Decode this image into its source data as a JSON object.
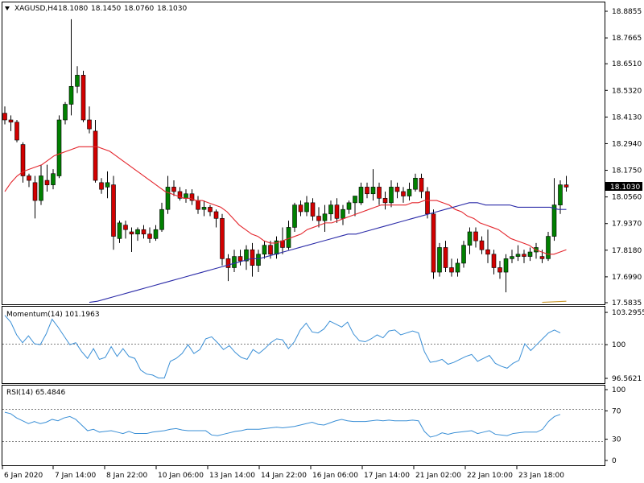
{
  "main_header": {
    "symbol": "XAGUSD,H4",
    "open": "18.1080",
    "high": "18.1450",
    "low": "18.0760",
    "close": "18.1030",
    "triangle_icon": "triangle-down-icon"
  },
  "current_price_label": "18.1030",
  "colors": {
    "bull": "#008000",
    "bear": "#d20000",
    "ma_fast": "#e4262d",
    "ma_slow": "#2b2ba8",
    "ma_long": "#c8962a",
    "indicator": "#3a8fd6",
    "grid": "#7f7f7f",
    "frame": "#000000"
  },
  "momentum": {
    "label": "Momentum(14) 101.1963",
    "ticks": [
      "103.2955",
      "100",
      "96.5621"
    ],
    "values": [
      103.0,
      102.3,
      101.0,
      100.2,
      100.9,
      100.1,
      100.0,
      101.1,
      102.6,
      101.8,
      100.9,
      100.0,
      100.2,
      99.3,
      98.6,
      99.6,
      98.5,
      98.7,
      99.8,
      98.8,
      99.6,
      98.8,
      98.6,
      97.4,
      97.0,
      96.9,
      96.6,
      96.6,
      98.3,
      98.6,
      99.1,
      100.0,
      99.1,
      99.5,
      100.6,
      100.8,
      100.2,
      99.5,
      99.9,
      99.2,
      98.7,
      98.5,
      99.5,
      99.1,
      99.6,
      100.2,
      100.6,
      100.5,
      99.6,
      100.3,
      101.5,
      102.2,
      101.3,
      101.2,
      101.6,
      102.4,
      102.1,
      101.8,
      102.3,
      101.1,
      100.4,
      100.3,
      100.6,
      101.0,
      100.7,
      101.4,
      101.5,
      101.0,
      101.2,
      101.4,
      101.2,
      99.3,
      98.2,
      98.3,
      98.5,
      98.0,
      98.2,
      98.5,
      98.8,
      99.0,
      98.3,
      98.6,
      98.9,
      98.1,
      97.8,
      97.6,
      98.1,
      98.4,
      100.1,
      99.4,
      100.0,
      100.6,
      101.2,
      101.5,
      101.2
    ]
  },
  "rsi": {
    "label": "RSI(14) 65.4846",
    "ticks": [
      "100",
      "70",
      "30",
      "0"
    ],
    "values": [
      68,
      66,
      60,
      56,
      52,
      55,
      52,
      54,
      58,
      56,
      60,
      62,
      58,
      50,
      42,
      44,
      40,
      41,
      42,
      40,
      38,
      41,
      38,
      38,
      38,
      40,
      41,
      42,
      44,
      45,
      43,
      42,
      42,
      42,
      42,
      36,
      35,
      37,
      39,
      41,
      42,
      44,
      44,
      44,
      45,
      46,
      47,
      46,
      47,
      48,
      50,
      52,
      54,
      51,
      50,
      53,
      56,
      58,
      56,
      55,
      55,
      55,
      56,
      57,
      56,
      57,
      56,
      56,
      56,
      57,
      56,
      41,
      33,
      35,
      39,
      37,
      39,
      40,
      41,
      42,
      38,
      40,
      42,
      37,
      36,
      35,
      38,
      39,
      40,
      40,
      40,
      44,
      55,
      62,
      65
    ]
  },
  "time_labels": [
    "6 Jan 2020",
    "7 Jan 14:00",
    "8 Jan 22:00",
    "10 Jan 06:00",
    "13 Jan 14:00",
    "14 Jan 22:00",
    "16 Jan 06:00",
    "17 Jan 14:00",
    "21 Jan 02:00",
    "22 Jan 10:00",
    "23 Jan 18:00"
  ],
  "chart_data": {
    "type": "candlestick",
    "title": "XAGUSD,H4",
    "y_ticks": [
      "18.8855",
      "18.7665",
      "18.6510",
      "18.5320",
      "18.4130",
      "18.2940",
      "18.1750",
      "18.0560",
      "17.9370",
      "17.8180",
      "17.6990",
      "17.5835"
    ],
    "ylim": [
      17.5835,
      18.8855
    ],
    "x_labels": [
      "6 Jan 2020",
      "7 Jan 14:00",
      "8 Jan 22:00",
      "10 Jan 06:00",
      "13 Jan 14:00",
      "14 Jan 22:00",
      "16 Jan 06:00",
      "17 Jan 14:00",
      "21 Jan 02:00",
      "22 Jan 10:00",
      "23 Jan 18:00"
    ],
    "ohlc": [
      [
        18.43,
        18.46,
        18.38,
        18.4
      ],
      [
        18.4,
        18.42,
        18.35,
        18.39
      ],
      [
        18.39,
        18.4,
        18.3,
        18.31
      ],
      [
        18.29,
        18.3,
        18.12,
        18.15
      ],
      [
        18.15,
        18.16,
        18.1,
        18.13
      ],
      [
        18.12,
        18.15,
        17.96,
        18.04
      ],
      [
        18.04,
        18.2,
        18.02,
        18.15
      ],
      [
        18.13,
        18.2,
        18.08,
        18.11
      ],
      [
        18.11,
        18.18,
        18.09,
        18.16
      ],
      [
        18.15,
        18.42,
        18.14,
        18.4
      ],
      [
        18.4,
        18.48,
        18.38,
        18.47
      ],
      [
        18.47,
        18.85,
        18.42,
        18.55
      ],
      [
        18.55,
        18.64,
        18.52,
        18.6
      ],
      [
        18.6,
        18.62,
        18.39,
        18.4
      ],
      [
        18.4,
        18.46,
        18.34,
        18.36
      ],
      [
        18.35,
        18.4,
        18.12,
        18.13
      ],
      [
        18.12,
        18.14,
        18.07,
        18.09
      ],
      [
        18.1,
        18.17,
        18.05,
        18.12
      ],
      [
        18.11,
        18.15,
        17.82,
        17.88
      ],
      [
        17.87,
        17.95,
        17.85,
        17.94
      ],
      [
        17.93,
        17.95,
        17.87,
        17.91
      ],
      [
        17.9,
        17.92,
        17.81,
        17.89
      ],
      [
        17.89,
        17.92,
        17.86,
        17.91
      ],
      [
        17.91,
        17.93,
        17.87,
        17.89
      ],
      [
        17.89,
        17.92,
        17.85,
        17.87
      ],
      [
        17.87,
        17.93,
        17.86,
        17.91
      ],
      [
        17.91,
        18.03,
        17.9,
        18.0
      ],
      [
        18.0,
        18.15,
        17.98,
        18.1
      ],
      [
        18.1,
        18.13,
        18.06,
        18.08
      ],
      [
        18.08,
        18.1,
        18.04,
        18.05
      ],
      [
        18.05,
        18.09,
        18.03,
        18.07
      ],
      [
        18.07,
        18.09,
        18.02,
        18.04
      ],
      [
        18.04,
        18.06,
        17.98,
        18.0
      ],
      [
        18.0,
        18.04,
        17.97,
        18.01
      ],
      [
        18.01,
        18.02,
        17.97,
        17.99
      ],
      [
        17.99,
        18.0,
        17.92,
        17.96
      ],
      [
        17.96,
        17.98,
        17.75,
        17.78
      ],
      [
        17.78,
        17.8,
        17.68,
        17.74
      ],
      [
        17.74,
        17.82,
        17.72,
        17.79
      ],
      [
        17.79,
        17.82,
        17.75,
        17.77
      ],
      [
        17.77,
        17.84,
        17.73,
        17.82
      ],
      [
        17.82,
        17.85,
        17.7,
        17.75
      ],
      [
        17.75,
        17.82,
        17.72,
        17.8
      ],
      [
        17.8,
        17.86,
        17.78,
        17.84
      ],
      [
        17.84,
        17.86,
        17.78,
        17.8
      ],
      [
        17.8,
        17.88,
        17.78,
        17.86
      ],
      [
        17.86,
        17.92,
        17.8,
        17.83
      ],
      [
        17.83,
        17.95,
        17.82,
        17.92
      ],
      [
        17.92,
        18.03,
        17.9,
        18.02
      ],
      [
        18.02,
        18.04,
        17.97,
        17.99
      ],
      [
        17.99,
        18.06,
        17.97,
        18.03
      ],
      [
        18.03,
        18.05,
        17.95,
        17.97
      ],
      [
        17.97,
        18.01,
        17.92,
        17.95
      ],
      [
        17.95,
        18.02,
        17.9,
        17.98
      ],
      [
        17.98,
        18.04,
        17.95,
        18.02
      ],
      [
        18.02,
        18.05,
        17.94,
        17.96
      ],
      [
        17.96,
        18.02,
        17.93,
        18.0
      ],
      [
        18.0,
        18.04,
        17.98,
        18.03
      ],
      [
        18.03,
        18.05,
        17.97,
        18.06
      ],
      [
        18.03,
        18.12,
        18.02,
        18.1
      ],
      [
        18.1,
        18.12,
        18.05,
        18.07
      ],
      [
        18.07,
        18.18,
        18.04,
        18.1
      ],
      [
        18.1,
        18.12,
        18.02,
        18.05
      ],
      [
        18.05,
        18.08,
        18.0,
        18.03
      ],
      [
        18.03,
        18.13,
        18.01,
        18.1
      ],
      [
        18.1,
        18.12,
        18.05,
        18.08
      ],
      [
        18.08,
        18.1,
        18.03,
        18.06
      ],
      [
        18.06,
        18.12,
        18.04,
        18.09
      ],
      [
        18.09,
        18.16,
        18.08,
        18.14
      ],
      [
        18.14,
        18.16,
        18.05,
        18.08
      ],
      [
        18.08,
        18.1,
        17.96,
        17.98
      ],
      [
        17.98,
        18.0,
        17.69,
        17.72
      ],
      [
        17.72,
        17.85,
        17.7,
        17.83
      ],
      [
        17.83,
        17.86,
        17.72,
        17.74
      ],
      [
        17.74,
        17.78,
        17.7,
        17.72
      ],
      [
        17.72,
        17.78,
        17.7,
        17.76
      ],
      [
        17.76,
        17.86,
        17.74,
        17.84
      ],
      [
        17.84,
        17.92,
        17.8,
        17.9
      ],
      [
        17.9,
        17.92,
        17.83,
        17.86
      ],
      [
        17.86,
        17.88,
        17.8,
        17.82
      ],
      [
        17.82,
        17.91,
        17.76,
        17.8
      ],
      [
        17.8,
        17.82,
        17.71,
        17.74
      ],
      [
        17.74,
        17.77,
        17.69,
        17.72
      ],
      [
        17.72,
        17.8,
        17.63,
        17.78
      ],
      [
        17.78,
        17.82,
        17.76,
        17.79
      ],
      [
        17.79,
        17.84,
        17.77,
        17.8
      ],
      [
        17.8,
        17.82,
        17.76,
        17.79
      ],
      [
        17.79,
        17.83,
        17.77,
        17.81
      ],
      [
        17.81,
        17.85,
        17.78,
        17.83
      ],
      [
        17.79,
        17.82,
        17.76,
        17.78
      ],
      [
        17.78,
        17.9,
        17.77,
        17.88
      ],
      [
        17.88,
        18.14,
        17.86,
        18.02
      ],
      [
        18.02,
        18.13,
        17.98,
        18.11
      ],
      [
        18.11,
        18.15,
        18.08,
        18.1
      ]
    ],
    "ma_fast_values": [
      18.08,
      18.12,
      18.15,
      18.17,
      18.18,
      18.19,
      18.2,
      18.22,
      18.24,
      18.25,
      18.26,
      18.27,
      18.28,
      18.28,
      18.28,
      18.28,
      18.27,
      18.26,
      18.24,
      18.22,
      18.2,
      18.18,
      18.16,
      18.14,
      18.12,
      18.1,
      18.08,
      18.07,
      18.06,
      18.05,
      18.05,
      18.04,
      18.04,
      18.03,
      18.02,
      18.01,
      17.99,
      17.96,
      17.93,
      17.91,
      17.89,
      17.88,
      17.86,
      17.85,
      17.85,
      17.86,
      17.87,
      17.88,
      17.89,
      17.91,
      17.92,
      17.93,
      17.94,
      17.94,
      17.95,
      17.96,
      17.97,
      17.98,
      17.99,
      18.0,
      18.01,
      18.02,
      18.02,
      18.02,
      18.02,
      18.02,
      18.03,
      18.03,
      18.04,
      18.04,
      18.04,
      18.03,
      18.02,
      18.0,
      17.99,
      17.97,
      17.96,
      17.94,
      17.93,
      17.92,
      17.91,
      17.89,
      17.87,
      17.86,
      17.85,
      17.84,
      17.82,
      17.81,
      17.8,
      17.8,
      17.81,
      17.82
    ],
    "ma_slow_values": [
      17.585,
      17.59,
      17.6,
      17.61,
      17.62,
      17.63,
      17.64,
      17.65,
      17.66,
      17.67,
      17.68,
      17.69,
      17.7,
      17.71,
      17.72,
      17.73,
      17.74,
      17.75,
      17.76,
      17.77,
      17.78,
      17.78,
      17.79,
      17.8,
      17.81,
      17.82,
      17.83,
      17.84,
      17.85,
      17.86,
      17.87,
      17.88,
      17.89,
      17.89,
      17.9,
      17.91,
      17.92,
      17.93,
      17.94,
      17.95,
      17.96,
      17.97,
      17.98,
      17.99,
      18.0,
      18.01,
      18.02,
      18.03,
      18.03,
      18.02,
      18.02,
      18.02,
      18.02,
      18.01,
      18.01,
      18.01,
      18.01,
      18.01,
      18.0,
      18.0
    ],
    "ma_long_values": [
      17.585,
      17.59
    ]
  }
}
